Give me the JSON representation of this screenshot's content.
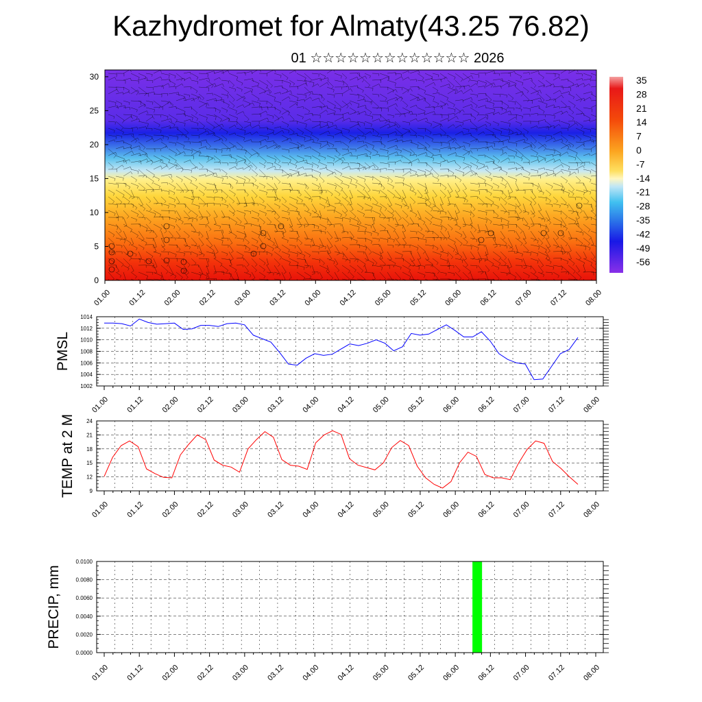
{
  "title": "Kazhydromet for Almaty(43.25 76.82)",
  "subtitle": "01 ☆☆☆☆☆☆☆☆☆☆☆☆☆ 2026",
  "colors": {
    "pressure_line": "#0000ff",
    "temperature_line": "#ff0000",
    "precip_bar": "#00ff00",
    "axis": "#000000",
    "grid": "#000000"
  },
  "chart_data": [
    {
      "id": "cross-section",
      "type": "heatmap",
      "title": "",
      "xlabel": "",
      "ylabel": "",
      "xlim": [
        0,
        56
      ],
      "ylim": [
        0,
        31
      ],
      "x_ticks": [
        "01.00",
        "01.12",
        "02.00",
        "02.12",
        "03.00",
        "03.12",
        "04.00",
        "04.12",
        "05.00",
        "05.12",
        "06.00",
        "06.12",
        "07.00",
        "07.12",
        "08.00"
      ],
      "y_ticks": [
        0,
        5,
        10,
        15,
        20,
        25,
        30
      ],
      "colorbar_labels": [
        "35",
        "28",
        "21",
        "14",
        "7",
        "0",
        "-7",
        "-14",
        "-21",
        "-28",
        "-35",
        "-42",
        "-49",
        "-56"
      ],
      "temperature_by_level": [
        {
          "level": 0,
          "value": 24
        },
        {
          "level": 3,
          "value": 20
        },
        {
          "level": 6,
          "value": 14
        },
        {
          "level": 9,
          "value": 6
        },
        {
          "level": 12,
          "value": -4
        },
        {
          "level": 15,
          "value": -12
        },
        {
          "level": 18,
          "value": -28
        },
        {
          "level": 21,
          "value": -52
        },
        {
          "level": 24,
          "value": -60
        },
        {
          "level": 31,
          "value": -62
        }
      ]
    },
    {
      "id": "pmsl",
      "type": "line",
      "title": "",
      "xlabel": "",
      "ylabel": "PMSL",
      "ylim": [
        1002,
        1014
      ],
      "y_ticks": [
        1002,
        1004,
        1006,
        1008,
        1010,
        1012,
        1014
      ],
      "x_ticks": [
        "01.00",
        "01.12",
        "02.00",
        "02.12",
        "03.00",
        "03.12",
        "04.00",
        "04.12",
        "05.00",
        "05.12",
        "06.00",
        "06.12",
        "07.00",
        "07.12",
        "08.00"
      ],
      "series": [
        {
          "name": "PMSL",
          "values": [
            1012.9,
            1012.9,
            1012.8,
            1012.4,
            1013.6,
            1013.0,
            1012.7,
            1012.8,
            1012.9,
            1011.8,
            1011.9,
            1012.5,
            1012.5,
            1012.3,
            1012.8,
            1012.9,
            1012.6,
            1010.8,
            1010.2,
            1009.6,
            1007.8,
            1005.8,
            1005.6,
            1006.8,
            1007.6,
            1007.3,
            1007.5,
            1008.4,
            1009.3,
            1009.0,
            1009.4,
            1010.0,
            1009.4,
            1008.1,
            1008.8,
            1011.1,
            1010.8,
            1011.0,
            1011.8,
            1012.6,
            1011.6,
            1010.5,
            1010.5,
            1011.4,
            1009.8,
            1007.6,
            1006.6,
            1006.0,
            1005.8,
            1003.1,
            1003.2,
            1005.4,
            1007.6,
            1008.3,
            1010.4
          ]
        }
      ]
    },
    {
      "id": "temp2m",
      "type": "line",
      "title": "",
      "xlabel": "",
      "ylabel": "TEMP at 2 M",
      "ylim": [
        9,
        24
      ],
      "y_ticks": [
        9,
        12,
        15,
        18,
        21,
        24
      ],
      "x_ticks": [
        "01.00",
        "01.12",
        "02.00",
        "02.12",
        "03.00",
        "03.12",
        "04.00",
        "04.12",
        "05.00",
        "05.12",
        "06.00",
        "06.12",
        "07.00",
        "07.12",
        "08.00"
      ],
      "series": [
        {
          "name": "TEMP at 2 M",
          "values": [
            12.1,
            16.2,
            18.7,
            19.7,
            18.5,
            13.7,
            12.7,
            11.9,
            11.8,
            16.7,
            19.0,
            21.0,
            20.0,
            15.6,
            14.5,
            14.1,
            13.0,
            18.0,
            20.0,
            21.7,
            20.5,
            15.7,
            14.5,
            14.3,
            13.6,
            19.3,
            21.0,
            21.9,
            21.1,
            15.9,
            14.5,
            14.0,
            13.5,
            15.0,
            18.3,
            19.8,
            18.7,
            14.3,
            11.8,
            10.4,
            9.6,
            11.0,
            15.0,
            17.3,
            16.4,
            12.5,
            11.8,
            11.8,
            11.4,
            15.0,
            17.9,
            19.7,
            19.2,
            15.3,
            13.8,
            12.0,
            10.4
          ]
        }
      ]
    },
    {
      "id": "precip",
      "type": "bar",
      "title": "",
      "xlabel": "",
      "ylabel": "PRECIP, mm",
      "ylim": [
        0,
        0.01
      ],
      "y_ticks": [
        "0.0000",
        "0.0020",
        "0.0040",
        "0.0060",
        "0.0080",
        "0.0100"
      ],
      "x_ticks": [
        "01.00",
        "01.12",
        "02.00",
        "02.12",
        "03.00",
        "03.12",
        "04.00",
        "04.12",
        "05.00",
        "05.12",
        "06.00",
        "06.12",
        "07.00",
        "07.12",
        "08.00"
      ],
      "bars": [
        {
          "x": 42.5,
          "value": 0.01
        }
      ]
    }
  ]
}
